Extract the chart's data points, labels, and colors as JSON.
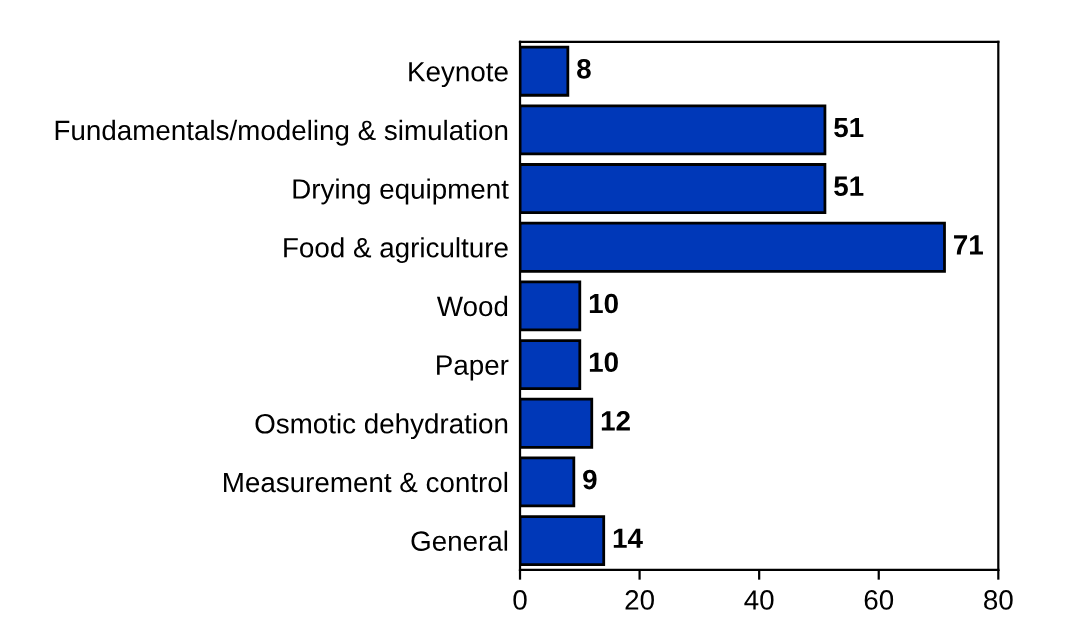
{
  "chart_data": {
    "type": "bar",
    "orientation": "horizontal",
    "categories": [
      "Keynote",
      "Fundamentals/modeling & simulation",
      "Drying equipment",
      "Food & agriculture",
      "Wood",
      "Paper",
      "Osmotic dehydration",
      "Measurement & control",
      "General"
    ],
    "values": [
      8,
      51,
      51,
      71,
      10,
      10,
      12,
      9,
      14
    ],
    "color": "#0038b8",
    "xlim": [
      0,
      80
    ],
    "xticks": [
      0,
      20,
      40,
      60,
      80
    ],
    "data_labels": true,
    "grid": false,
    "legend": false
  }
}
